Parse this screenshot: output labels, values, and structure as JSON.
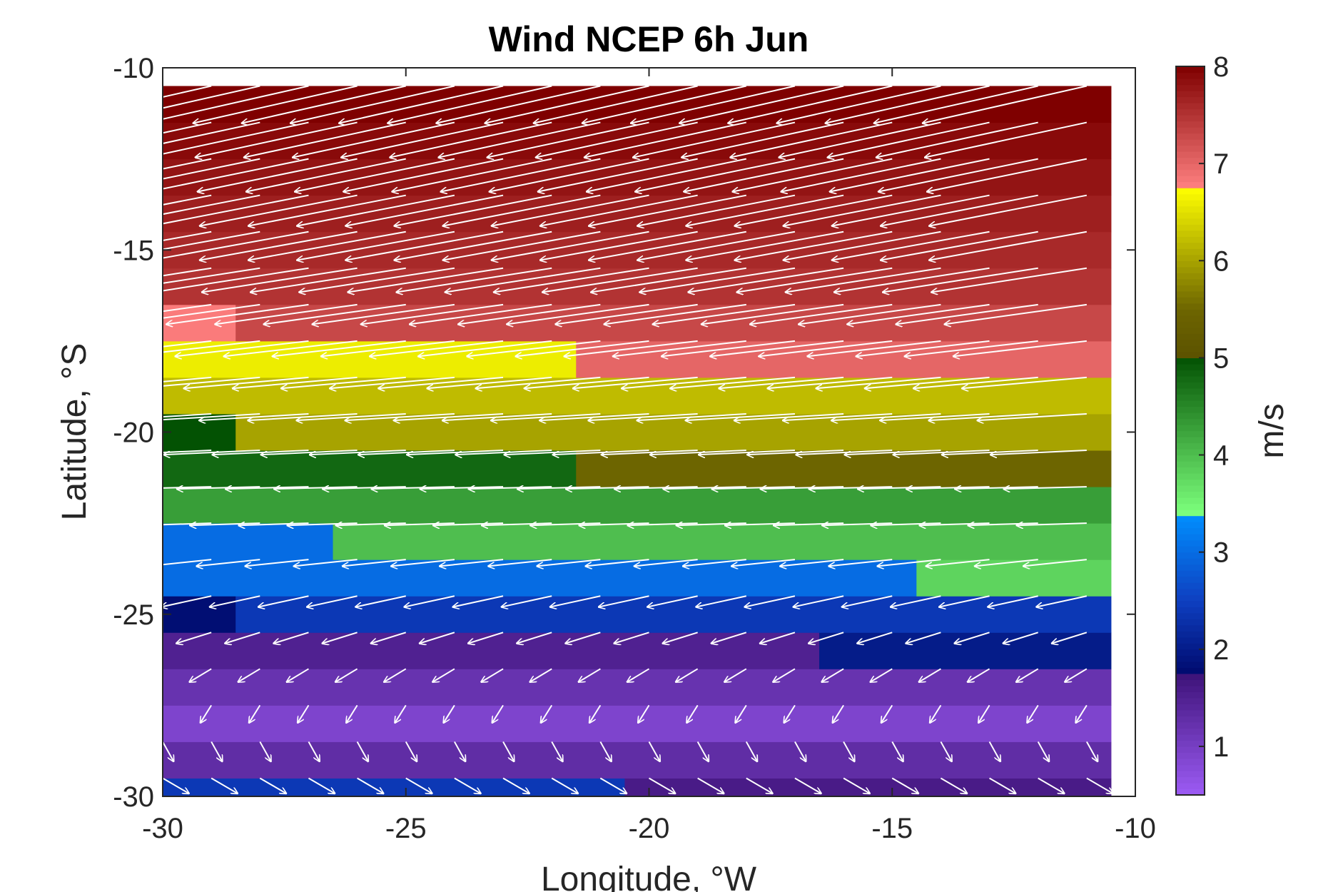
{
  "chart_data": {
    "type": "heatmap",
    "title": "Wind NCEP 6h Jun",
    "xlabel": "Longitude, °W",
    "ylabel": "Latitude, °S",
    "xlim": [
      -30,
      -10
    ],
    "ylim": [
      -30,
      -10
    ],
    "x_ticks": [
      -30,
      -25,
      -20,
      -15,
      -10
    ],
    "y_ticks": [
      -30,
      -25,
      -20,
      -15,
      -10
    ],
    "x_tick_labels": [
      "-30",
      "-25",
      "-20",
      "-15",
      "-10"
    ],
    "y_tick_labels": [
      "-30",
      "-25",
      "-20",
      "-15",
      "-10"
    ],
    "colorbar": {
      "label": "m/s",
      "range": [
        0.5,
        8
      ],
      "ticks": [
        1,
        2,
        3,
        4,
        5,
        6,
        7,
        8
      ],
      "tick_labels": [
        "1",
        "2",
        "3",
        "4",
        "5",
        "6",
        "7",
        "8"
      ]
    },
    "grid_extent": {
      "lon": [
        -30,
        -10.5
      ],
      "lat": [
        -30,
        -10.5
      ]
    },
    "wind_speed_bands": [
      {
        "lat_range": [
          -30,
          -29.5
        ],
        "segments": [
          {
            "lon_range": [
              -30,
              -20.5
            ],
            "speed": 2.4
          },
          {
            "lon_range": [
              -20.5,
              -10.5
            ],
            "speed": 1.6
          }
        ]
      },
      {
        "lat_range": [
          -29.5,
          -28.5
        ],
        "segments": [
          {
            "lon_range": [
              -30,
              -10.5
            ],
            "speed": 1.3
          }
        ]
      },
      {
        "lat_range": [
          -28.5,
          -27.5
        ],
        "segments": [
          {
            "lon_range": [
              -30,
              -10.5
            ],
            "speed": 0.9
          }
        ]
      },
      {
        "lat_range": [
          -27.5,
          -26.5
        ],
        "segments": [
          {
            "lon_range": [
              -30,
              -10.5
            ],
            "speed": 1.2
          }
        ]
      },
      {
        "lat_range": [
          -26.5,
          -25.5
        ],
        "segments": [
          {
            "lon_range": [
              -30,
              -16.5
            ],
            "speed": 1.5
          },
          {
            "lon_range": [
              -16.5,
              -10.5
            ],
            "speed": 2.0
          }
        ]
      },
      {
        "lat_range": [
          -25.5,
          -24.5
        ],
        "segments": [
          {
            "lon_range": [
              -30,
              -28.5
            ],
            "speed": 1.8
          },
          {
            "lon_range": [
              -28.5,
              -10.5
            ],
            "speed": 2.4
          }
        ]
      },
      {
        "lat_range": [
          -24.5,
          -23.5
        ],
        "segments": [
          {
            "lon_range": [
              -30,
              -14.5
            ],
            "speed": 3.0
          },
          {
            "lon_range": [
              -14.5,
              -10.5
            ],
            "speed": 3.8
          }
        ]
      },
      {
        "lat_range": [
          -23.5,
          -22.5
        ],
        "segments": [
          {
            "lon_range": [
              -30,
              -26.5
            ],
            "speed": 3.0
          },
          {
            "lon_range": [
              -26.5,
              -10.5
            ],
            "speed": 4.0
          }
        ]
      },
      {
        "lat_range": [
          -22.5,
          -21.5
        ],
        "segments": [
          {
            "lon_range": [
              -30,
              -10.5
            ],
            "speed": 4.3
          }
        ]
      },
      {
        "lat_range": [
          -21.5,
          -20.5
        ],
        "segments": [
          {
            "lon_range": [
              -30,
              -21.5
            ],
            "speed": 4.8
          },
          {
            "lon_range": [
              -21.5,
              -10.5
            ],
            "speed": 5.5
          }
        ]
      },
      {
        "lat_range": [
          -20.5,
          -19.5
        ],
        "segments": [
          {
            "lon_range": [
              -30,
              -28.5
            ],
            "speed": 5.0
          },
          {
            "lon_range": [
              -28.5,
              -10.5
            ],
            "speed": 6.0
          }
        ]
      },
      {
        "lat_range": [
          -19.5,
          -18.5
        ],
        "segments": [
          {
            "lon_range": [
              -30,
              -10.5
            ],
            "speed": 6.2
          }
        ]
      },
      {
        "lat_range": [
          -18.5,
          -17.5
        ],
        "segments": [
          {
            "lon_range": [
              -30,
              -21.5
            ],
            "speed": 6.6
          },
          {
            "lon_range": [
              -21.5,
              -10.5
            ],
            "speed": 7.0
          }
        ]
      },
      {
        "lat_range": [
          -17.5,
          -16.5
        ],
        "segments": [
          {
            "lon_range": [
              -30,
              -28.5
            ],
            "speed": 6.8
          },
          {
            "lon_range": [
              -28.5,
              -10.5
            ],
            "speed": 7.3
          }
        ]
      },
      {
        "lat_range": [
          -16.5,
          -15.5
        ],
        "segments": [
          {
            "lon_range": [
              -30,
              -10.5
            ],
            "speed": 7.5
          }
        ]
      },
      {
        "lat_range": [
          -15.5,
          -14.5
        ],
        "segments": [
          {
            "lon_range": [
              -30,
              -10.5
            ],
            "speed": 7.6
          }
        ]
      },
      {
        "lat_range": [
          -14.5,
          -13.5
        ],
        "segments": [
          {
            "lon_range": [
              -30,
              -10.5
            ],
            "speed": 7.7
          }
        ]
      },
      {
        "lat_range": [
          -13.5,
          -12.5
        ],
        "segments": [
          {
            "lon_range": [
              -30,
              -10.5
            ],
            "speed": 7.8
          }
        ]
      },
      {
        "lat_range": [
          -12.5,
          -11.5
        ],
        "segments": [
          {
            "lon_range": [
              -30,
              -10.5
            ],
            "speed": 7.9
          }
        ]
      },
      {
        "lat_range": [
          -11.5,
          -10.5
        ],
        "segments": [
          {
            "lon_range": [
              -30,
              -10.5
            ],
            "speed": 8.0
          }
        ]
      }
    ],
    "wind_vectors": {
      "lon_points": [
        -30,
        -29,
        -28,
        -27,
        -26,
        -25,
        -24,
        -23,
        -22,
        -21,
        -20,
        -19,
        -18,
        -17,
        -16,
        -15,
        -14,
        -13,
        -12,
        -11
      ],
      "rows": [
        {
          "lat": -29.5,
          "u": 1.2,
          "v": -0.7
        },
        {
          "lat": -28.5,
          "u": 0.5,
          "v": -0.9
        },
        {
          "lat": -27.5,
          "u": -0.5,
          "v": -0.8
        },
        {
          "lat": -26.5,
          "u": -1.0,
          "v": -0.6
        },
        {
          "lat": -25.5,
          "u": -1.6,
          "v": -0.5
        },
        {
          "lat": -24.5,
          "u": -2.3,
          "v": -0.5
        },
        {
          "lat": -23.5,
          "u": -2.9,
          "v": -0.3
        },
        {
          "lat": -22.5,
          "u": -3.2,
          "v": -0.1
        },
        {
          "lat": -21.5,
          "u": -3.8,
          "v": -0.1
        },
        {
          "lat": -20.5,
          "u": -4.4,
          "v": -0.2
        },
        {
          "lat": -19.5,
          "u": -5.0,
          "v": -0.3
        },
        {
          "lat": -18.5,
          "u": -5.7,
          "v": -0.5
        },
        {
          "lat": -17.5,
          "u": -6.1,
          "v": -0.7
        },
        {
          "lat": -16.5,
          "u": -6.5,
          "v": -0.9
        },
        {
          "lat": -15.5,
          "u": -7.1,
          "v": -1.1
        },
        {
          "lat": -14.5,
          "u": -7.2,
          "v": -1.3
        },
        {
          "lat": -13.5,
          "u": -7.2,
          "v": -1.4
        },
        {
          "lat": -12.5,
          "u": -7.3,
          "v": -1.5
        },
        {
          "lat": -11.5,
          "u": -7.4,
          "v": -1.6
        },
        {
          "lat": -10.5,
          "u": -7.5,
          "v": -1.7
        }
      ]
    },
    "colormap_segments": [
      {
        "range": [
          0.5,
          1.75
        ],
        "from": "#9d5cf5",
        "to": "#3d1278"
      },
      {
        "range": [
          1.75,
          2.5
        ],
        "from": "#000a6e",
        "to": "#0e3fc0"
      },
      {
        "range": [
          2.5,
          3.4
        ],
        "from": "#0e3fc0",
        "to": "#0090ff"
      },
      {
        "range": [
          3.4,
          5.0
        ],
        "from": "#7cff7c",
        "to": "#035203"
      },
      {
        "range": [
          5.0,
          5.5
        ],
        "from": "#5c5200",
        "to": "#6d6500"
      },
      {
        "range": [
          5.5,
          6.75
        ],
        "from": "#6d6500",
        "to": "#ffff00"
      },
      {
        "range": [
          6.75,
          8.0
        ],
        "from": "#ff8080",
        "to": "#7f0000"
      }
    ],
    "arrow_color": "#ffffff",
    "grid": false
  }
}
